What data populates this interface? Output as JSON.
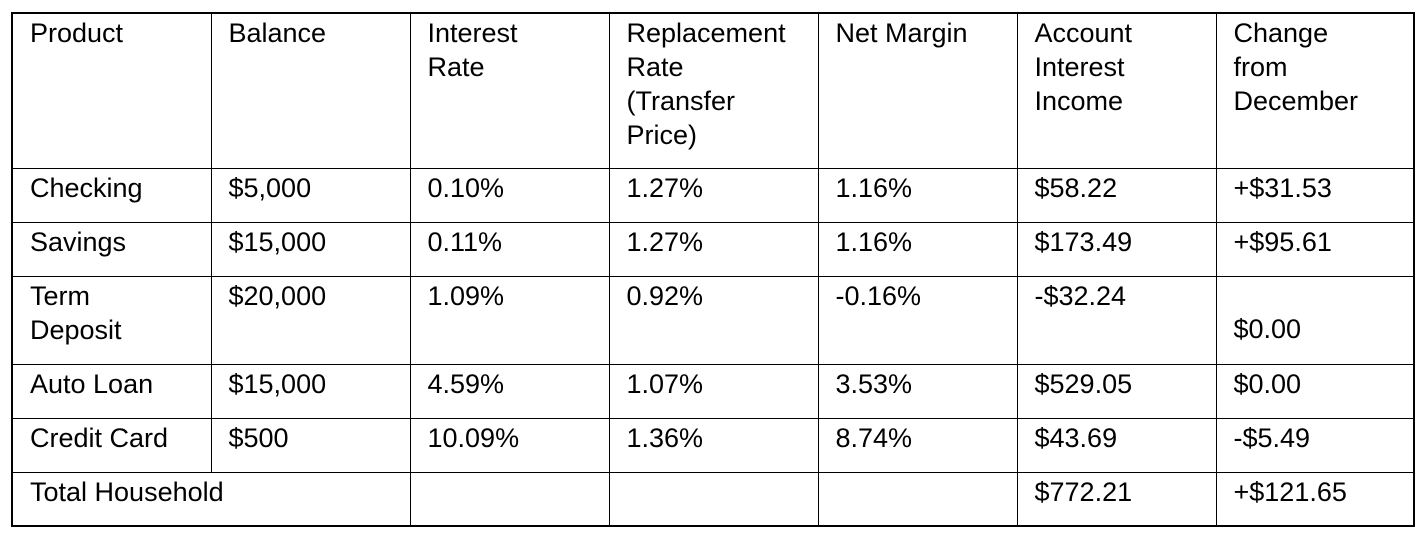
{
  "table": {
    "headers": [
      "Product",
      "Balance",
      "Interest\nRate",
      "Replacement\nRate\n(Transfer\nPrice)",
      "Net Margin",
      "Account\nInterest\nIncome",
      "Change\nfrom\nDecember"
    ],
    "rows": [
      [
        "Checking",
        "$5,000",
        "0.10%",
        "1.27%",
        "1.16%",
        "$58.22",
        "+$31.53"
      ],
      [
        "Savings",
        "$15,000",
        "0.11%",
        "1.27%",
        "1.16%",
        "$173.49",
        "+$95.61"
      ],
      [
        "Term\nDeposit",
        "$20,000",
        "1.09%",
        "0.92%",
        "-0.16%",
        "-$32.24",
        "$0.00"
      ],
      [
        "Auto Loan",
        "$15,000",
        "4.59%",
        "1.07%",
        "3.53%",
        "$529.05",
        "$0.00"
      ],
      [
        "Credit Card",
        "$500",
        "10.09%",
        "1.36%",
        "8.74%",
        "$43.69",
        "-$5.49"
      ]
    ],
    "total": {
      "label": "Total Household",
      "income": "$772.21",
      "change": "+$121.65"
    }
  }
}
